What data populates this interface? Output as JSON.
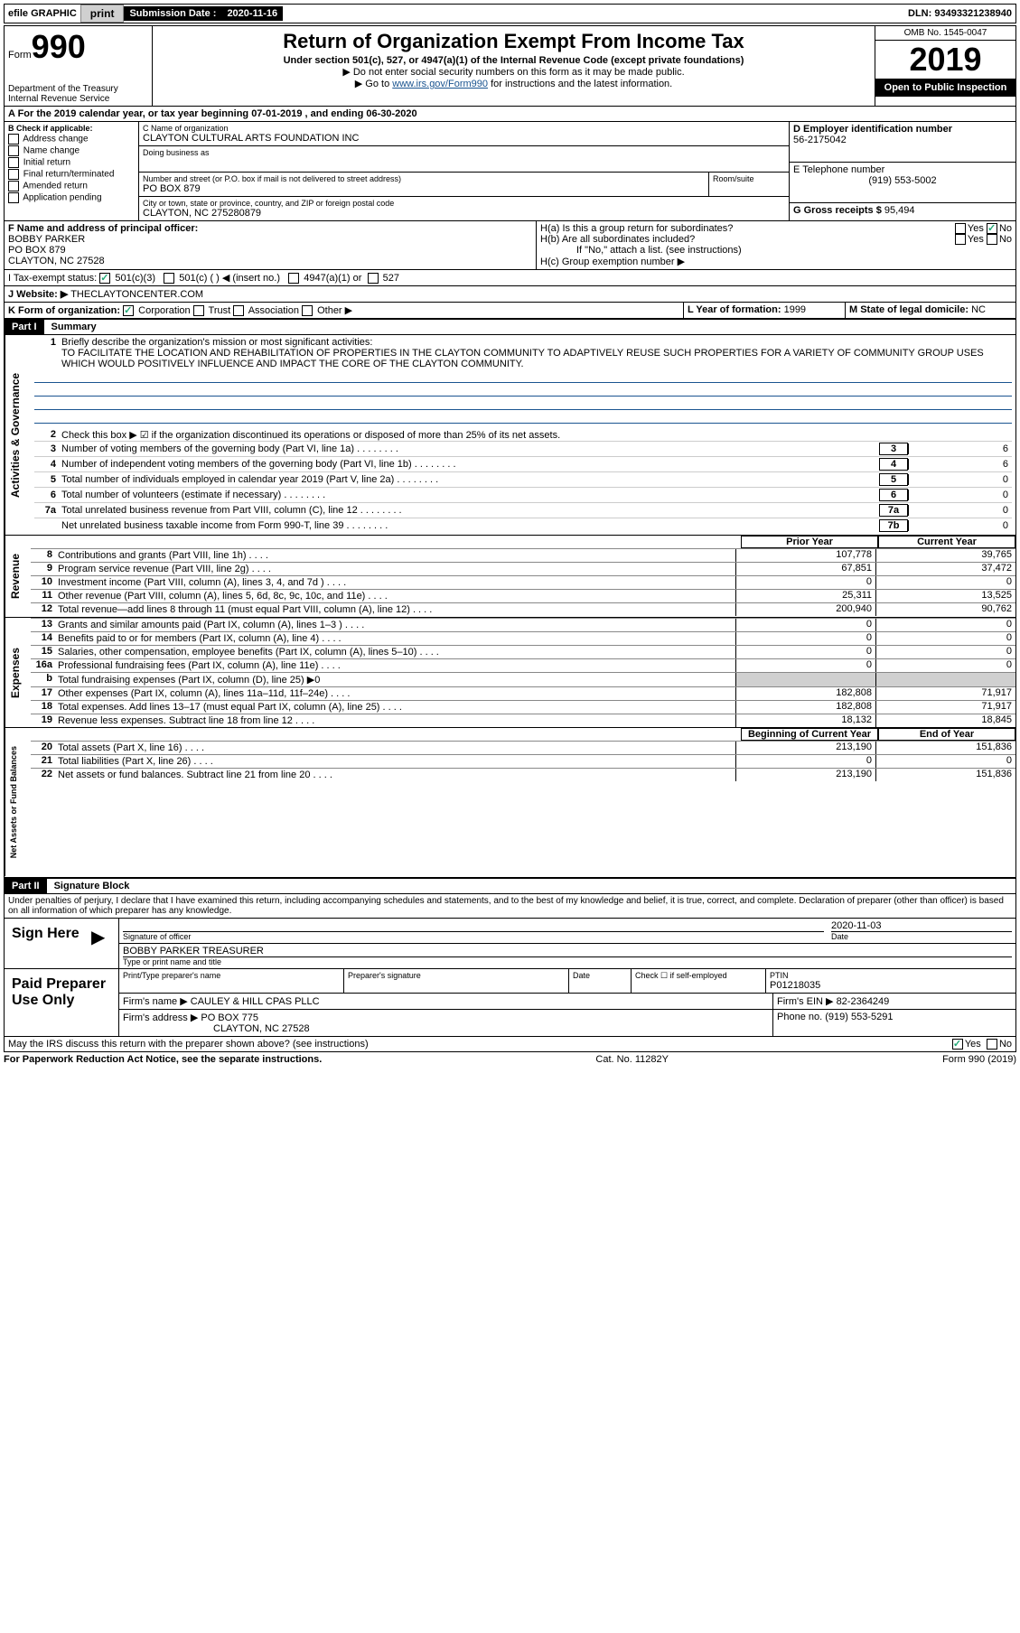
{
  "topbar": {
    "efile": "efile GRAPHIC",
    "print": "print",
    "sub_label": "Submission Date :",
    "sub_date": "2020-11-16",
    "dln_label": "DLN:",
    "dln": "93493321238940"
  },
  "header": {
    "form_word": "Form",
    "form_num": "990",
    "dept": "Department of the Treasury\nInternal Revenue Service",
    "title": "Return of Organization Exempt From Income Tax",
    "subtitle": "Under section 501(c), 527, or 4947(a)(1) of the Internal Revenue Code (except private foundations)",
    "note1": "▶ Do not enter social security numbers on this form as it may be made public.",
    "note2_pre": "▶ Go to ",
    "note2_link": "www.irs.gov/Form990",
    "note2_post": " for instructions and the latest information.",
    "omb": "OMB No. 1545-0047",
    "year": "2019",
    "inspection": "Open to Public Inspection"
  },
  "section_a": {
    "text": "A For the 2019 calendar year, or tax year beginning 07-01-2019   , and ending 06-30-2020"
  },
  "box_b": {
    "label": "B Check if applicable:",
    "items": [
      "Address change",
      "Name change",
      "Initial return",
      "Final return/terminated",
      "Amended return",
      "Application pending"
    ]
  },
  "box_c": {
    "name_label": "C Name of organization",
    "name": "CLAYTON CULTURAL ARTS FOUNDATION INC",
    "dba_label": "Doing business as",
    "addr_label": "Number and street (or P.O. box if mail is not delivered to street address)",
    "room_label": "Room/suite",
    "addr": "PO BOX 879",
    "city_label": "City or town, state or province, country, and ZIP or foreign postal code",
    "city": "CLAYTON, NC  275280879"
  },
  "box_d": {
    "label": "D Employer identification number",
    "ein": "56-2175042"
  },
  "box_e": {
    "label": "E Telephone number",
    "phone": "(919) 553-5002"
  },
  "box_g": {
    "label": "G Gross receipts $",
    "amount": "95,494"
  },
  "box_f": {
    "label": "F  Name and address of principal officer:",
    "name": "BOBBY PARKER",
    "addr1": "PO BOX 879",
    "addr2": "CLAYTON, NC  27528"
  },
  "box_h": {
    "ha": "H(a)  Is this a group return for subordinates?",
    "hb": "H(b)  Are all subordinates included?",
    "hb_note": "If \"No,\" attach a list. (see instructions)",
    "hc": "H(c)  Group exemption number ▶",
    "yes": "Yes",
    "no": "No"
  },
  "tax_exempt": {
    "label": "I   Tax-exempt status:",
    "opt1": "501(c)(3)",
    "opt2": "501(c) (  ) ◀ (insert no.)",
    "opt3": "4947(a)(1) or",
    "opt4": "527"
  },
  "website": {
    "label": "J   Website: ▶",
    "url": "THECLAYTONCENTER.COM"
  },
  "box_k": {
    "label": "K Form of organization:",
    "opts": [
      "Corporation",
      "Trust",
      "Association",
      "Other ▶"
    ]
  },
  "box_l": {
    "label": "L Year of formation:",
    "val": "1999"
  },
  "box_m": {
    "label": "M State of legal domicile:",
    "val": "NC"
  },
  "part1": {
    "header": "Part I",
    "title": "Summary",
    "line1_label": "Briefly describe the organization's mission or most significant activities:",
    "mission": "TO FACILITATE THE LOCATION AND REHABILITATION OF PROPERTIES IN THE CLAYTON COMMUNITY TO ADAPTIVELY REUSE SUCH PROPERTIES FOR A VARIETY OF COMMUNITY GROUP USES WHICH WOULD POSITIVELY INFLUENCE AND IMPACT THE CORE OF THE CLAYTON COMMUNITY.",
    "line2": "Check this box ▶ ☑ if the organization discontinued its operations or disposed of more than 25% of its net assets.",
    "governance_label": "Activities & Governance",
    "revenue_label": "Revenue",
    "expenses_label": "Expenses",
    "netassets_label": "Net Assets or Fund Balances",
    "lines_gov": [
      {
        "n": "3",
        "t": "Number of voting members of the governing body (Part VI, line 1a)",
        "box": "3",
        "v": "6"
      },
      {
        "n": "4",
        "t": "Number of independent voting members of the governing body (Part VI, line 1b)",
        "box": "4",
        "v": "6"
      },
      {
        "n": "5",
        "t": "Total number of individuals employed in calendar year 2019 (Part V, line 2a)",
        "box": "5",
        "v": "0"
      },
      {
        "n": "6",
        "t": "Total number of volunteers (estimate if necessary)",
        "box": "6",
        "v": "0"
      },
      {
        "n": "7a",
        "t": "Total unrelated business revenue from Part VIII, column (C), line 12",
        "box": "7a",
        "v": "0"
      },
      {
        "n": "",
        "t": "Net unrelated business taxable income from Form 990-T, line 39",
        "box": "7b",
        "v": "0"
      }
    ],
    "prior_year": "Prior Year",
    "current_year": "Current Year",
    "lines_rev": [
      {
        "n": "8",
        "t": "Contributions and grants (Part VIII, line 1h)",
        "py": "107,778",
        "cy": "39,765"
      },
      {
        "n": "9",
        "t": "Program service revenue (Part VIII, line 2g)",
        "py": "67,851",
        "cy": "37,472"
      },
      {
        "n": "10",
        "t": "Investment income (Part VIII, column (A), lines 3, 4, and 7d )",
        "py": "0",
        "cy": "0"
      },
      {
        "n": "11",
        "t": "Other revenue (Part VIII, column (A), lines 5, 6d, 8c, 9c, 10c, and 11e)",
        "py": "25,311",
        "cy": "13,525"
      },
      {
        "n": "12",
        "t": "Total revenue—add lines 8 through 11 (must equal Part VIII, column (A), line 12)",
        "py": "200,940",
        "cy": "90,762"
      }
    ],
    "lines_exp": [
      {
        "n": "13",
        "t": "Grants and similar amounts paid (Part IX, column (A), lines 1–3 )",
        "py": "0",
        "cy": "0"
      },
      {
        "n": "14",
        "t": "Benefits paid to or for members (Part IX, column (A), line 4)",
        "py": "0",
        "cy": "0"
      },
      {
        "n": "15",
        "t": "Salaries, other compensation, employee benefits (Part IX, column (A), lines 5–10)",
        "py": "0",
        "cy": "0"
      },
      {
        "n": "16a",
        "t": "Professional fundraising fees (Part IX, column (A), line 11e)",
        "py": "0",
        "cy": "0"
      },
      {
        "n": "b",
        "t": "Total fundraising expenses (Part IX, column (D), line 25) ▶0",
        "py": "",
        "cy": "",
        "grey": true
      },
      {
        "n": "17",
        "t": "Other expenses (Part IX, column (A), lines 11a–11d, 11f–24e)",
        "py": "182,808",
        "cy": "71,917"
      },
      {
        "n": "18",
        "t": "Total expenses. Add lines 13–17 (must equal Part IX, column (A), line 25)",
        "py": "182,808",
        "cy": "71,917"
      },
      {
        "n": "19",
        "t": "Revenue less expenses. Subtract line 18 from line 12",
        "py": "18,132",
        "cy": "18,845"
      }
    ],
    "begin_year": "Beginning of Current Year",
    "end_year": "End of Year",
    "lines_net": [
      {
        "n": "20",
        "t": "Total assets (Part X, line 16)",
        "py": "213,190",
        "cy": "151,836"
      },
      {
        "n": "21",
        "t": "Total liabilities (Part X, line 26)",
        "py": "0",
        "cy": "0"
      },
      {
        "n": "22",
        "t": "Net assets or fund balances. Subtract line 21 from line 20",
        "py": "213,190",
        "cy": "151,836"
      }
    ]
  },
  "part2": {
    "header": "Part II",
    "title": "Signature Block",
    "jurat": "Under penalties of perjury, I declare that I have examined this return, including accompanying schedules and statements, and to the best of my knowledge and belief, it is true, correct, and complete. Declaration of preparer (other than officer) is based on all information of which preparer has any knowledge.",
    "sign_here": "Sign Here",
    "sig_officer": "Signature of officer",
    "date_label": "Date",
    "sig_date": "2020-11-03",
    "officer_name": "BOBBY PARKER  TREASURER",
    "type_name": "Type or print name and title",
    "paid_prep": "Paid Preparer Use Only",
    "print_name": "Print/Type preparer's name",
    "prep_sig": "Preparer's signature",
    "check_self": "Check ☐ if self-employed",
    "ptin_label": "PTIN",
    "ptin": "P01218035",
    "firm_name_label": "Firm's name    ▶",
    "firm_name": "CAULEY & HILL CPAS PLLC",
    "firm_ein_label": "Firm's EIN ▶",
    "firm_ein": "82-2364249",
    "firm_addr_label": "Firm's address ▶",
    "firm_addr1": "PO BOX 775",
    "firm_addr2": "CLAYTON, NC  27528",
    "phone_label": "Phone no.",
    "phone": "(919) 553-5291",
    "discuss": "May the IRS discuss this return with the preparer shown above? (see instructions)",
    "yes": "Yes",
    "no": "No"
  },
  "footer": {
    "left": "For Paperwork Reduction Act Notice, see the separate instructions.",
    "center": "Cat. No. 11282Y",
    "right": "Form 990 (2019)"
  }
}
